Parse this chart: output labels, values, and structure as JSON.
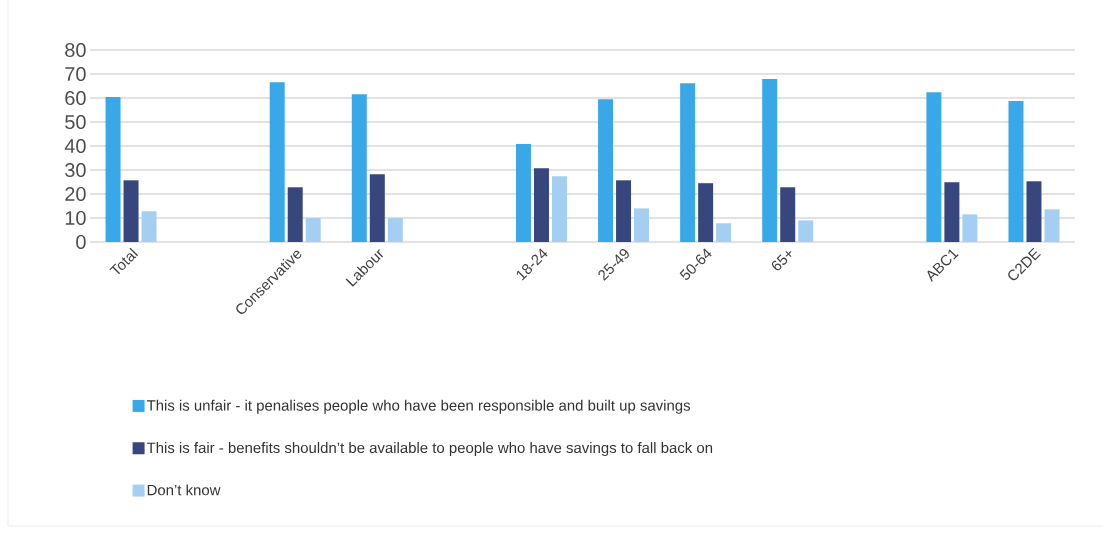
{
  "chart_data": {
    "type": "bar",
    "categories": [
      "Total",
      null,
      "Conservative",
      "Labour",
      null,
      "18-24",
      "25-49",
      "50-64",
      "65+",
      null,
      "ABC1",
      "C2DE"
    ],
    "series": [
      {
        "name": "This is unfair - it penalises people who have been responsible and built up savings",
        "color": "#39a8e8",
        "values": [
          60.4,
          null,
          66.6,
          61.6,
          null,
          40.8,
          59.5,
          66.2,
          67.9,
          null,
          62.4,
          58.7
        ]
      },
      {
        "name": "This is fair - benefits shouldn’t be available to people who have savings to fall back on",
        "color": "#37467d",
        "values": [
          25.7,
          null,
          22.8,
          28.2,
          null,
          30.7,
          25.7,
          24.5,
          22.8,
          null,
          24.9,
          25.3
        ]
      },
      {
        "name": "Don’t know",
        "color": "#a4cff2",
        "values": [
          12.8,
          null,
          10,
          10,
          null,
          27.4,
          14.0,
          7.8,
          9.0,
          null,
          11.5,
          13.6
        ]
      }
    ],
    "ylim": [
      0,
      80
    ],
    "yticks": [
      0,
      10,
      20,
      30,
      40,
      50,
      60,
      70,
      80
    ],
    "grid": "y",
    "legend": "bottom"
  }
}
